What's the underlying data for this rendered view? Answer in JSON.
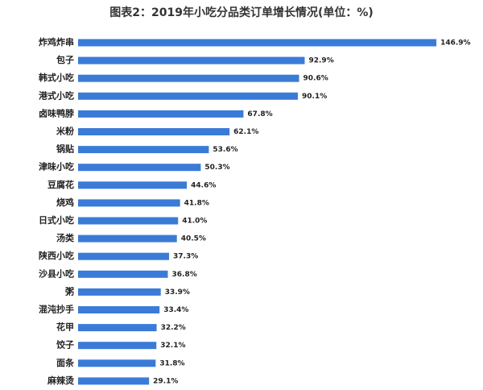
{
  "chart_data": {
    "type": "bar",
    "orientation": "horizontal",
    "title": "图表2：2019年小吃分品类订单增长情况(单位：%)",
    "categories": [
      "炸鸡炸串",
      "包子",
      "韩式小吃",
      "港式小吃",
      "卤味鸭脖",
      "米粉",
      "锅贴",
      "津味小吃",
      "豆腐花",
      "烧鸡",
      "日式小吃",
      "汤类",
      "陕西小吃",
      "沙县小吃",
      "粥",
      "混沌抄手",
      "花甲",
      "饺子",
      "面条",
      "麻辣烫"
    ],
    "values": [
      146.9,
      92.9,
      90.6,
      90.1,
      67.8,
      62.1,
      53.6,
      50.3,
      44.6,
      41.8,
      41.0,
      40.5,
      37.3,
      36.8,
      33.9,
      33.4,
      32.2,
      32.1,
      31.8,
      29.1
    ],
    "value_labels": [
      "146.9%",
      "92.9%",
      "90.6%",
      "90.1%",
      "67.8%",
      "62.1%",
      "53.6%",
      "50.3%",
      "44.6%",
      "41.8%",
      "41.0%",
      "40.5%",
      "37.3%",
      "36.8%",
      "33.9%",
      "33.4%",
      "32.2%",
      "32.1%",
      "31.8%",
      "29.1%"
    ],
    "color": "#3b7bd8"
  }
}
